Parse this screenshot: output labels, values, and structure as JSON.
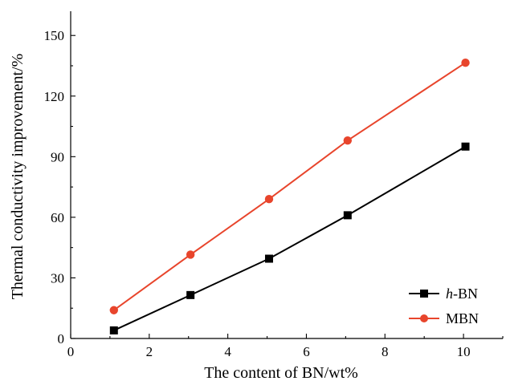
{
  "chart_data": {
    "type": "line",
    "xlabel": "The content of BN/wt%",
    "ylabel": "Thermal conductivity improvement/%",
    "xlim": [
      0,
      11
    ],
    "ylim": [
      0,
      162
    ],
    "xticks": [
      0,
      2,
      4,
      6,
      8,
      10
    ],
    "yticks": [
      0,
      30,
      60,
      90,
      120,
      150
    ],
    "grid": false,
    "legend_position": "bottom-right",
    "series": [
      {
        "name_prefix": "h",
        "name_suffix": "-BN",
        "name": "h-BN",
        "color": "#000000",
        "marker": "square",
        "x": [
          1.1,
          3.05,
          5.05,
          7.05,
          10.05
        ],
        "values": [
          4,
          21.5,
          39.5,
          61,
          95
        ]
      },
      {
        "name": "MBN",
        "color": "#e8452c",
        "marker": "circle",
        "x": [
          1.1,
          3.05,
          5.05,
          7.05,
          10.05
        ],
        "values": [
          14,
          41.5,
          69,
          98,
          136.5
        ]
      }
    ]
  }
}
